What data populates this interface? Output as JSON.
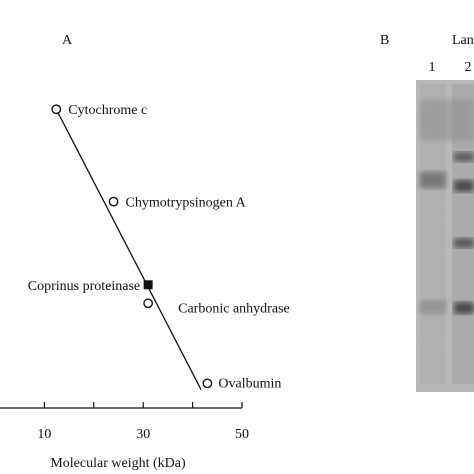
{
  "chart_data": {
    "type": "scatter",
    "panel_a_label": "A",
    "panel_b_label": "B",
    "xlabel": "Molecular weight (kDa)",
    "xlim": [
      0,
      50
    ],
    "xticks": [
      10,
      30,
      50
    ],
    "ylim": [
      0,
      1
    ],
    "series": [
      {
        "marker": "open-circle",
        "points": [
          {
            "label": "Cytochrome c",
            "x": 12.4,
            "y": 0.97
          },
          {
            "label": "Chymotrypsinogen A",
            "x": 24,
            "y": 0.67
          },
          {
            "label": "Carbonic anhydrase",
            "x": 31,
            "y": 0.34
          },
          {
            "label": "Ovalbumin",
            "x": 43,
            "y": 0.08
          }
        ]
      },
      {
        "marker": "filled-square",
        "points": [
          {
            "label": "Coprinus proteinase",
            "x": 31,
            "y": 0.4
          }
        ]
      }
    ],
    "fit_line": {
      "x": [
        12.4,
        41.7
      ],
      "y": [
        0.97,
        0.06
      ]
    },
    "gel": {
      "header": "Lan",
      "lanes": [
        "1",
        "2"
      ]
    }
  }
}
